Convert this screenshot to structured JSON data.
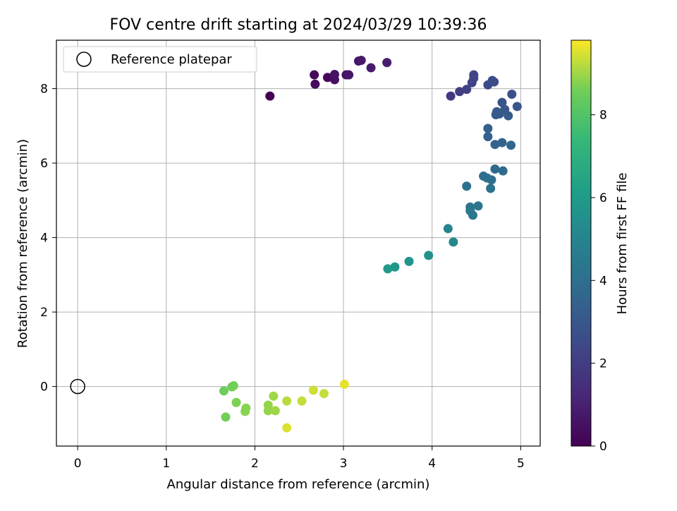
{
  "chart_data": {
    "type": "scatter",
    "title": "FOV centre drift starting at 2024/03/29 10:39:36",
    "xlabel": "Angular distance from reference (arcmin)",
    "ylabel": "Rotation from reference (arcmin)",
    "xlim": [
      -0.24,
      5.22
    ],
    "ylim": [
      -1.6,
      9.3
    ],
    "xticks": [
      0,
      1,
      2,
      3,
      4,
      5
    ],
    "yticks": [
      0,
      2,
      4,
      6,
      8
    ],
    "grid": true,
    "legend": {
      "placement": "top-left",
      "entries": [
        {
          "label": "Reference platepar",
          "marker": "open-circle",
          "x": 0,
          "y": 0
        }
      ]
    },
    "colorbar": {
      "label": "Hours from first FF file",
      "colormap": "viridis",
      "range": [
        0,
        9.8
      ],
      "ticks": [
        0,
        2,
        4,
        6,
        8
      ]
    },
    "points": [
      {
        "x": 2.17,
        "y": 7.8,
        "c": 0.0
      },
      {
        "x": 2.67,
        "y": 8.37,
        "c": 0.25
      },
      {
        "x": 2.68,
        "y": 8.12,
        "c": 0.35
      },
      {
        "x": 2.82,
        "y": 8.3,
        "c": 0.2
      },
      {
        "x": 2.9,
        "y": 8.38,
        "c": 0.55
      },
      {
        "x": 2.9,
        "y": 8.24,
        "c": 0.5
      },
      {
        "x": 3.03,
        "y": 8.37,
        "c": 0.6
      },
      {
        "x": 3.06,
        "y": 8.37,
        "c": 0.65
      },
      {
        "x": 3.17,
        "y": 8.74,
        "c": 0.7
      },
      {
        "x": 3.2,
        "y": 8.76,
        "c": 0.75
      },
      {
        "x": 3.31,
        "y": 8.56,
        "c": 0.8
      },
      {
        "x": 3.49,
        "y": 8.7,
        "c": 0.9
      },
      {
        "x": 4.21,
        "y": 7.8,
        "c": 1.9
      },
      {
        "x": 4.31,
        "y": 7.92,
        "c": 2.0
      },
      {
        "x": 4.39,
        "y": 7.98,
        "c": 2.1
      },
      {
        "x": 4.45,
        "y": 8.16,
        "c": 2.2
      },
      {
        "x": 4.47,
        "y": 8.37,
        "c": 2.3
      },
      {
        "x": 4.47,
        "y": 8.28,
        "c": 2.3
      },
      {
        "x": 4.63,
        "y": 8.1,
        "c": 2.5
      },
      {
        "x": 4.68,
        "y": 8.22,
        "c": 2.6
      },
      {
        "x": 4.7,
        "y": 8.18,
        "c": 2.6
      },
      {
        "x": 4.9,
        "y": 7.85,
        "c": 2.8
      },
      {
        "x": 4.79,
        "y": 7.63,
        "c": 2.9
      },
      {
        "x": 4.96,
        "y": 7.52,
        "c": 3.0
      },
      {
        "x": 4.82,
        "y": 7.44,
        "c": 3.0
      },
      {
        "x": 4.73,
        "y": 7.38,
        "c": 3.1
      },
      {
        "x": 4.72,
        "y": 7.3,
        "c": 3.1
      },
      {
        "x": 4.76,
        "y": 7.32,
        "c": 3.1
      },
      {
        "x": 4.86,
        "y": 7.27,
        "c": 3.2
      },
      {
        "x": 4.63,
        "y": 6.93,
        "c": 3.3
      },
      {
        "x": 4.63,
        "y": 6.71,
        "c": 3.4
      },
      {
        "x": 4.71,
        "y": 6.5,
        "c": 3.5
      },
      {
        "x": 4.79,
        "y": 6.55,
        "c": 3.5
      },
      {
        "x": 4.89,
        "y": 6.48,
        "c": 3.6
      },
      {
        "x": 4.71,
        "y": 5.84,
        "c": 3.8
      },
      {
        "x": 4.8,
        "y": 5.79,
        "c": 3.8
      },
      {
        "x": 4.58,
        "y": 5.65,
        "c": 3.9
      },
      {
        "x": 4.62,
        "y": 5.6,
        "c": 4.0
      },
      {
        "x": 4.67,
        "y": 5.55,
        "c": 4.0
      },
      {
        "x": 4.39,
        "y": 5.38,
        "c": 4.1
      },
      {
        "x": 4.66,
        "y": 5.32,
        "c": 4.1
      },
      {
        "x": 4.43,
        "y": 4.82,
        "c": 4.3
      },
      {
        "x": 4.52,
        "y": 4.85,
        "c": 4.3
      },
      {
        "x": 4.43,
        "y": 4.72,
        "c": 4.4
      },
      {
        "x": 4.46,
        "y": 4.6,
        "c": 4.4
      },
      {
        "x": 4.18,
        "y": 4.24,
        "c": 5.0
      },
      {
        "x": 4.24,
        "y": 3.88,
        "c": 5.2
      },
      {
        "x": 3.96,
        "y": 3.52,
        "c": 5.5
      },
      {
        "x": 3.74,
        "y": 3.36,
        "c": 5.7
      },
      {
        "x": 3.58,
        "y": 3.21,
        "c": 5.8
      },
      {
        "x": 3.5,
        "y": 3.16,
        "c": 5.9
      },
      {
        "x": 3.01,
        "y": 0.06,
        "c": 9.6
      },
      {
        "x": 2.66,
        "y": -0.1,
        "c": 9.4
      },
      {
        "x": 2.78,
        "y": -0.19,
        "c": 9.3
      },
      {
        "x": 2.21,
        "y": -0.26,
        "c": 9.0
      },
      {
        "x": 2.53,
        "y": -0.39,
        "c": 9.3
      },
      {
        "x": 2.36,
        "y": -0.39,
        "c": 9.2
      },
      {
        "x": 2.15,
        "y": -0.5,
        "c": 8.9
      },
      {
        "x": 2.15,
        "y": -0.65,
        "c": 8.9
      },
      {
        "x": 2.23,
        "y": -0.65,
        "c": 9.0
      },
      {
        "x": 2.36,
        "y": -1.11,
        "c": 9.5
      },
      {
        "x": 1.76,
        "y": 0.02,
        "c": 8.6
      },
      {
        "x": 1.74,
        "y": -0.01,
        "c": 8.6
      },
      {
        "x": 1.65,
        "y": -0.12,
        "c": 8.5
      },
      {
        "x": 1.79,
        "y": -0.43,
        "c": 8.7
      },
      {
        "x": 1.9,
        "y": -0.58,
        "c": 8.8
      },
      {
        "x": 1.89,
        "y": -0.67,
        "c": 8.8
      },
      {
        "x": 1.67,
        "y": -0.82,
        "c": 8.6
      }
    ]
  }
}
